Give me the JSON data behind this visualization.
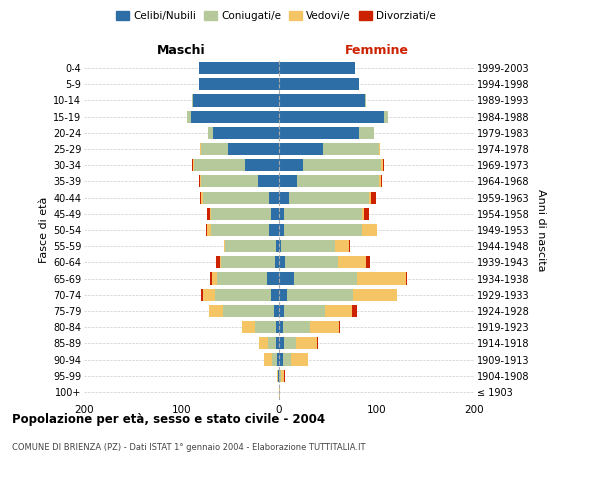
{
  "age_groups": [
    "100+",
    "95-99",
    "90-94",
    "85-89",
    "80-84",
    "75-79",
    "70-74",
    "65-69",
    "60-64",
    "55-59",
    "50-54",
    "45-49",
    "40-44",
    "35-39",
    "30-34",
    "25-29",
    "20-24",
    "15-19",
    "10-14",
    "5-9",
    "0-4"
  ],
  "birth_years": [
    "≤ 1903",
    "1904-1908",
    "1909-1913",
    "1914-1918",
    "1919-1923",
    "1924-1928",
    "1929-1933",
    "1934-1938",
    "1939-1943",
    "1944-1948",
    "1949-1953",
    "1954-1958",
    "1959-1963",
    "1964-1968",
    "1969-1973",
    "1974-1978",
    "1979-1983",
    "1984-1988",
    "1989-1993",
    "1994-1998",
    "1999-2003"
  ],
  "colors": {
    "celibi": "#2e6ea6",
    "coniugati": "#b5c99a",
    "vedovi": "#f5c465",
    "divorziati": "#cc2200"
  },
  "maschi": {
    "celibi": [
      0,
      1,
      2,
      3,
      3,
      5,
      8,
      12,
      4,
      3,
      10,
      8,
      10,
      22,
      35,
      52,
      68,
      90,
      88,
      82,
      82
    ],
    "coniugati": [
      0,
      0,
      5,
      8,
      22,
      52,
      58,
      52,
      55,
      52,
      60,
      62,
      68,
      58,
      52,
      28,
      5,
      4,
      1,
      0,
      0
    ],
    "vedovi": [
      0,
      1,
      8,
      10,
      13,
      15,
      12,
      5,
      2,
      1,
      4,
      1,
      2,
      1,
      1,
      1,
      0,
      0,
      0,
      0,
      0
    ],
    "divorziati": [
      0,
      0,
      0,
      0,
      0,
      0,
      2,
      2,
      4,
      0,
      1,
      3,
      1,
      1,
      1,
      0,
      0,
      0,
      0,
      0,
      0
    ]
  },
  "femmine": {
    "celibi": [
      0,
      0,
      4,
      5,
      4,
      5,
      8,
      15,
      6,
      2,
      5,
      5,
      10,
      18,
      25,
      45,
      82,
      108,
      88,
      82,
      78
    ],
    "coniugati": [
      0,
      2,
      8,
      12,
      28,
      42,
      68,
      65,
      55,
      55,
      80,
      80,
      82,
      85,
      80,
      58,
      15,
      4,
      1,
      0,
      0
    ],
    "vedovi": [
      1,
      3,
      18,
      22,
      30,
      28,
      45,
      50,
      28,
      15,
      15,
      2,
      2,
      2,
      2,
      1,
      0,
      0,
      0,
      0,
      0
    ],
    "divorziati": [
      0,
      1,
      0,
      1,
      1,
      5,
      0,
      1,
      4,
      1,
      1,
      5,
      5,
      1,
      1,
      0,
      0,
      0,
      0,
      0,
      0
    ]
  },
  "title": "Popolazione per età, sesso e stato civile - 2004",
  "subtitle": "COMUNE DI BRIENZA (PZ) - Dati ISTAT 1° gennaio 2004 - Elaborazione TUTTITALIA.IT",
  "ylabel_left": "Fasce di età",
  "ylabel_right": "Anni di nascita",
  "label_maschi": "Maschi",
  "label_femmine": "Femmine",
  "xlim": 200,
  "legend_labels": [
    "Celibi/Nubili",
    "Coniugati/e",
    "Vedovi/e",
    "Divorziati/e"
  ],
  "background_color": "#ffffff",
  "bar_height": 0.75,
  "grid_color": "#cccccc",
  "axvline_color": "#aaaaaa"
}
